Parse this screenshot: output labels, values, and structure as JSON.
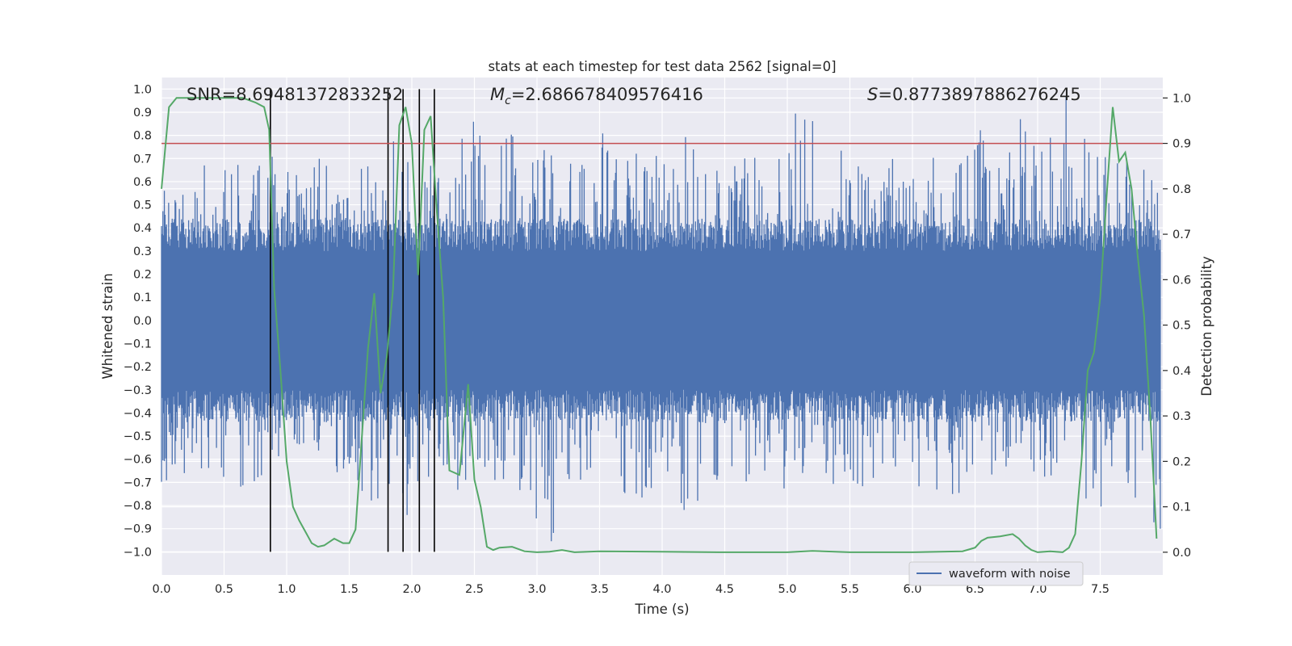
{
  "chart_data": {
    "type": "line",
    "title": "stats at each timestep for test data 2562 [signal=0]",
    "xlabel": "Time (s)",
    "ylabel": "Whitened strain",
    "ylabel_right": "Detection probability",
    "xlim": [
      0,
      8
    ],
    "ylim": [
      -1.1,
      1.05
    ],
    "ylim_right": [
      -0.05,
      1.045
    ],
    "xticks": [
      "0.0",
      "0.5",
      "1.0",
      "1.5",
      "2.0",
      "2.5",
      "3.0",
      "3.5",
      "4.0",
      "4.5",
      "5.0",
      "5.5",
      "6.0",
      "6.5",
      "7.0",
      "7.5"
    ],
    "yticks": [
      "1.0",
      "0.9",
      "0.8",
      "0.7",
      "0.6",
      "0.5",
      "0.4",
      "0.3",
      "0.2",
      "0.1",
      "0.0",
      "-0.1",
      "-0.2",
      "-0.3",
      "-0.4",
      "-0.5",
      "-0.6",
      "-0.7",
      "-0.8",
      "-0.9",
      "-1.0"
    ],
    "yticks_right": [
      "1.0",
      "0.9",
      "0.8",
      "0.7",
      "0.6",
      "0.5",
      "0.4",
      "0.3",
      "0.2",
      "0.1",
      "0.0"
    ],
    "annotations": {
      "snr": "SNR=8.69481372833252",
      "mc_symbol": "M",
      "mc_sub": "c",
      "mc_value": "=2.686678409576416",
      "s_symbol": "S",
      "s_value": "=0.8773897886276245"
    },
    "legend": [
      "waveform with noise"
    ],
    "threshold": 0.9,
    "vertical_lines": [
      0.87,
      1.81,
      1.93,
      2.06,
      2.18
    ],
    "vertical_line_range": [
      -1.0,
      1.0
    ],
    "waveform_envelope": {
      "name": "waveform with noise",
      "typical_amplitude": 0.4,
      "peak_positive": [
        0.58,
        0.73,
        0.85,
        0.75,
        0.65,
        0.72,
        0.7,
        0.7,
        0.82,
        0.75,
        0.88,
        0.86,
        0.85,
        0.77,
        0.72,
        0.85,
        0.73,
        0.8,
        0.8,
        0.7,
        0.72,
        0.85,
        0.9,
        0.8,
        0.72,
        0.7,
        0.72,
        0.82,
        0.85,
        0.75,
        0.88,
        0.98,
        0.8,
        0.72,
        0.7
      ],
      "peak_negative": [
        -0.7,
        -0.65,
        -0.75,
        -0.72,
        -0.6,
        -0.62,
        -0.75,
        -0.78,
        -0.85,
        -0.7,
        -0.82,
        -0.7,
        -0.75,
        -0.96,
        -0.8,
        -0.75,
        -0.82,
        -0.76,
        -0.84,
        -0.78,
        -0.72,
        -0.77,
        -0.73,
        -0.74,
        -0.75,
        -0.73,
        -0.74,
        -0.76,
        -0.72,
        -0.78,
        -0.72,
        -0.75,
        -0.82,
        -0.76,
        -0.98
      ]
    },
    "series": [
      {
        "name": "detection probability",
        "axis": "right",
        "x": [
          0,
          0.06,
          0.12,
          0.2,
          0.3,
          0.5,
          0.65,
          0.75,
          0.82,
          0.86,
          0.9,
          0.95,
          1.0,
          1.05,
          1.1,
          1.2,
          1.25,
          1.3,
          1.38,
          1.45,
          1.5,
          1.55,
          1.6,
          1.65,
          1.7,
          1.75,
          1.8,
          1.85,
          1.9,
          1.95,
          2.0,
          2.05,
          2.1,
          2.15,
          2.2,
          2.25,
          2.3,
          2.38,
          2.45,
          2.5,
          2.55,
          2.6,
          2.65,
          2.7,
          2.8,
          2.9,
          3.0,
          3.1,
          3.2,
          3.3,
          3.5,
          4.0,
          4.5,
          5.0,
          5.2,
          5.5,
          6.0,
          6.4,
          6.5,
          6.55,
          6.6,
          6.7,
          6.8,
          6.85,
          6.9,
          6.95,
          7.0,
          7.1,
          7.2,
          7.25,
          7.3,
          7.35,
          7.4,
          7.45,
          7.5,
          7.55,
          7.6,
          7.65,
          7.7,
          7.75,
          7.8,
          7.85,
          7.9,
          7.95
        ],
        "values": [
          0.8,
          0.98,
          1.0,
          1.0,
          1.0,
          1.0,
          1.0,
          0.99,
          0.98,
          0.93,
          0.58,
          0.4,
          0.2,
          0.1,
          0.07,
          0.02,
          0.012,
          0.015,
          0.03,
          0.02,
          0.02,
          0.05,
          0.25,
          0.45,
          0.57,
          0.35,
          0.43,
          0.58,
          0.94,
          0.98,
          0.9,
          0.61,
          0.93,
          0.96,
          0.75,
          0.56,
          0.18,
          0.17,
          0.37,
          0.16,
          0.1,
          0.012,
          0.005,
          0.01,
          0.012,
          0.002,
          0.0,
          0.001,
          0.005,
          0.0,
          0.002,
          0.001,
          0.0,
          0.0,
          0.003,
          0.0,
          0.0,
          0.002,
          0.01,
          0.025,
          0.032,
          0.035,
          0.04,
          0.03,
          0.015,
          0.005,
          0.0,
          0.002,
          0.0,
          0.01,
          0.04,
          0.2,
          0.4,
          0.44,
          0.56,
          0.78,
          0.98,
          0.86,
          0.88,
          0.8,
          0.65,
          0.52,
          0.3,
          0.03
        ]
      }
    ]
  }
}
